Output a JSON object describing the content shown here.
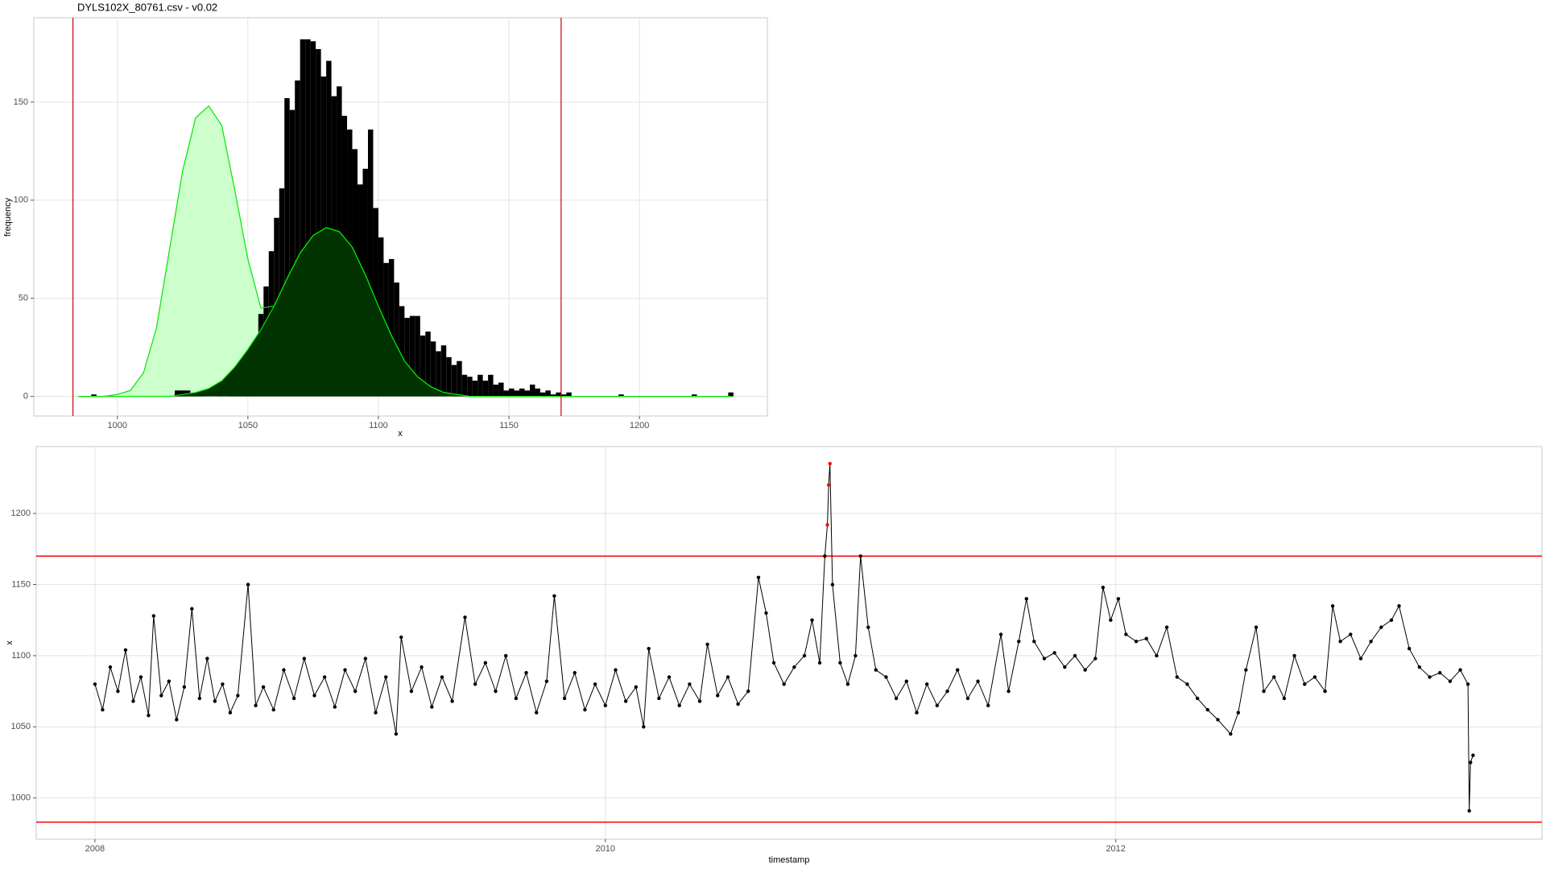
{
  "chart_data": [
    {
      "type": "histogram",
      "title": "DYLS102X_80761.csv - v0.02",
      "xlabel": "x",
      "ylabel": "frequency",
      "bins": [
        990,
        992,
        994,
        996,
        998,
        1000,
        1002,
        1004,
        1006,
        1008,
        1010,
        1012,
        1014,
        1016,
        1018,
        1020,
        1022,
        1024,
        1026,
        1028,
        1030,
        1032,
        1034,
        1036,
        1038,
        1040,
        1042,
        1044,
        1046,
        1048,
        1050,
        1052,
        1054,
        1056,
        1058,
        1060,
        1062,
        1064,
        1066,
        1068,
        1070,
        1072,
        1074,
        1076,
        1078,
        1080,
        1082,
        1084,
        1086,
        1088,
        1090,
        1092,
        1094,
        1096,
        1098,
        1100,
        1102,
        1104,
        1106,
        1108,
        1110,
        1112,
        1114,
        1116,
        1118,
        1120,
        1122,
        1124,
        1126,
        1128,
        1130,
        1132,
        1134,
        1136,
        1138,
        1140,
        1142,
        1144,
        1146,
        1148,
        1150,
        1152,
        1154,
        1156,
        1158,
        1160,
        1162,
        1164,
        1166,
        1168,
        1170,
        1172,
        1174,
        1176,
        1178,
        1180,
        1182,
        1184,
        1186,
        1188,
        1190,
        1192,
        1194,
        1196,
        1198,
        1200,
        1202,
        1204,
        1206,
        1208,
        1210,
        1212,
        1214,
        1216,
        1218,
        1220,
        1222,
        1224,
        1226,
        1228,
        1230,
        1232,
        1234,
        1236
      ],
      "values": [
        1,
        0,
        0,
        0,
        0,
        0,
        0,
        0,
        0,
        0,
        0,
        0,
        0,
        0,
        0,
        0,
        3,
        3,
        3,
        1,
        1,
        1,
        0,
        0,
        2,
        0,
        2,
        2,
        5,
        8,
        15,
        20,
        42,
        56,
        74,
        91,
        106,
        152,
        146,
        161,
        182,
        182,
        181,
        177,
        163,
        171,
        153,
        158,
        143,
        136,
        126,
        108,
        116,
        136,
        96,
        81,
        68,
        70,
        58,
        46,
        40,
        41,
        41,
        31,
        33,
        28,
        23,
        26,
        20,
        16,
        18,
        11,
        10,
        8,
        11,
        8,
        11,
        6,
        7,
        3,
        4,
        3,
        4,
        3,
        6,
        4,
        2,
        3,
        1,
        2,
        1,
        2,
        0,
        0,
        0,
        0,
        0,
        0,
        0,
        0,
        0,
        1,
        0,
        0,
        0,
        0,
        0,
        0,
        0,
        0,
        0,
        0,
        0,
        0,
        0,
        1,
        0,
        0,
        0,
        0,
        0,
        0,
        2
      ],
      "color": "#000000",
      "density_x": [
        985,
        990,
        995,
        1000,
        1005,
        1010,
        1015,
        1020,
        1025,
        1030,
        1035,
        1040,
        1045,
        1050,
        1055,
        1060,
        1065,
        1070,
        1075,
        1080,
        1085,
        1090,
        1095,
        1100,
        1105,
        1110,
        1115,
        1120,
        1125,
        1130,
        1135,
        1140,
        1235
      ],
      "density": [
        {
          "line_color": "#00e600",
          "fill": "#ccffcc",
          "values": [
            0,
            0,
            0,
            1,
            3,
            12,
            35,
            75,
            115,
            142,
            148,
            138,
            105,
            70,
            45,
            46,
            60,
            73,
            82,
            86,
            84,
            76,
            62,
            46,
            31,
            18,
            10,
            5,
            2,
            1,
            0,
            0,
            0
          ]
        },
        {
          "line_color": "#00e600",
          "fill": "#003300",
          "values": [
            0,
            0,
            0,
            0,
            0,
            0,
            0,
            0,
            1,
            2,
            4,
            8,
            15,
            24,
            34,
            46,
            60,
            73,
            82,
            86,
            84,
            76,
            62,
            46,
            31,
            18,
            10,
            5,
            2,
            1,
            0,
            0,
            0
          ]
        }
      ],
      "vlines": [
        983,
        1170
      ],
      "vline_color": "#cc0000",
      "xlim": [
        968,
        1249
      ],
      "xticks": [
        1000,
        1050,
        1100,
        1150,
        1200
      ],
      "ylim": [
        -10,
        193
      ],
      "yticks": [
        0,
        50,
        100,
        150
      ],
      "grid": true
    },
    {
      "type": "line",
      "xlabel": "timestamp",
      "ylabel": "x",
      "x": [
        2008.0,
        2008.03,
        2008.06,
        2008.09,
        2008.12,
        2008.15,
        2008.18,
        2008.21,
        2008.23,
        2008.26,
        2008.29,
        2008.32,
        2008.35,
        2008.38,
        2008.41,
        2008.44,
        2008.47,
        2008.5,
        2008.53,
        2008.56,
        2008.6,
        2008.63,
        2008.66,
        2008.7,
        2008.74,
        2008.78,
        2008.82,
        2008.86,
        2008.9,
        2008.94,
        2008.98,
        2009.02,
        2009.06,
        2009.1,
        2009.14,
        2009.18,
        2009.2,
        2009.24,
        2009.28,
        2009.32,
        2009.36,
        2009.4,
        2009.45,
        2009.49,
        2009.53,
        2009.57,
        2009.61,
        2009.65,
        2009.69,
        2009.73,
        2009.77,
        2009.8,
        2009.84,
        2009.88,
        2009.92,
        2009.96,
        2010.0,
        2010.04,
        2010.08,
        2010.12,
        2010.15,
        2010.17,
        2010.21,
        2010.25,
        2010.29,
        2010.33,
        2010.37,
        2010.4,
        2010.44,
        2010.48,
        2010.52,
        2010.56,
        2010.6,
        2010.63,
        2010.66,
        2010.7,
        2010.74,
        2010.78,
        2010.81,
        2010.84,
        2010.86,
        2010.87,
        2010.875,
        2010.88,
        2010.89,
        2010.92,
        2010.95,
        2010.98,
        2011.0,
        2011.03,
        2011.06,
        2011.1,
        2011.14,
        2011.18,
        2011.22,
        2011.26,
        2011.3,
        2011.34,
        2011.38,
        2011.42,
        2011.46,
        2011.5,
        2011.55,
        2011.58,
        2011.62,
        2011.65,
        2011.68,
        2011.72,
        2011.76,
        2011.8,
        2011.84,
        2011.88,
        2011.92,
        2011.95,
        2011.98,
        2012.01,
        2012.04,
        2012.08,
        2012.12,
        2012.16,
        2012.2,
        2012.24,
        2012.28,
        2012.32,
        2012.36,
        2012.4,
        2012.45,
        2012.48,
        2012.51,
        2012.55,
        2012.58,
        2012.62,
        2012.66,
        2012.7,
        2012.74,
        2012.78,
        2012.82,
        2012.85,
        2012.88,
        2012.92,
        2012.96,
        2013.0,
        2013.04,
        2013.08,
        2013.11,
        2013.15,
        2013.19,
        2013.23,
        2013.27,
        2013.31,
        2013.35,
        2013.38,
        2013.385,
        2013.39,
        2013.4
      ],
      "values": [
        1080,
        1062,
        1092,
        1075,
        1104,
        1068,
        1085,
        1058,
        1128,
        1072,
        1082,
        1055,
        1078,
        1133,
        1070,
        1098,
        1068,
        1080,
        1060,
        1072,
        1150,
        1065,
        1078,
        1062,
        1090,
        1070,
        1098,
        1072,
        1085,
        1064,
        1090,
        1075,
        1098,
        1060,
        1085,
        1045,
        1113,
        1075,
        1092,
        1064,
        1085,
        1068,
        1127,
        1080,
        1095,
        1075,
        1100,
        1070,
        1088,
        1060,
        1082,
        1142,
        1070,
        1088,
        1062,
        1080,
        1065,
        1090,
        1068,
        1078,
        1050,
        1105,
        1070,
        1085,
        1065,
        1080,
        1068,
        1108,
        1072,
        1085,
        1066,
        1075,
        1155,
        1130,
        1095,
        1080,
        1092,
        1100,
        1125,
        1095,
        1170,
        1192,
        1220,
        1235,
        1150,
        1095,
        1080,
        1100,
        1170,
        1120,
        1090,
        1085,
        1070,
        1082,
        1060,
        1080,
        1065,
        1075,
        1090,
        1070,
        1082,
        1065,
        1115,
        1075,
        1110,
        1140,
        1110,
        1098,
        1102,
        1092,
        1100,
        1090,
        1098,
        1148,
        1125,
        1140,
        1115,
        1110,
        1112,
        1100,
        1120,
        1085,
        1080,
        1070,
        1062,
        1055,
        1045,
        1060,
        1090,
        1120,
        1075,
        1085,
        1070,
        1100,
        1080,
        1085,
        1075,
        1135,
        1110,
        1115,
        1098,
        1110,
        1120,
        1125,
        1135,
        1105,
        1092,
        1085,
        1088,
        1082,
        1090,
        1080,
        991,
        1025,
        1030
      ],
      "color": "#000000",
      "outlier_color": "#ff0000",
      "hlines": [
        983,
        1170
      ],
      "hline_color": "#ff0000",
      "xlim": [
        2007.77,
        2013.67
      ],
      "xticks": [
        2008,
        2010,
        2012
      ],
      "ylim": [
        971,
        1247
      ],
      "yticks": [
        1000,
        1050,
        1100,
        1150,
        1200
      ],
      "grid": true
    }
  ]
}
